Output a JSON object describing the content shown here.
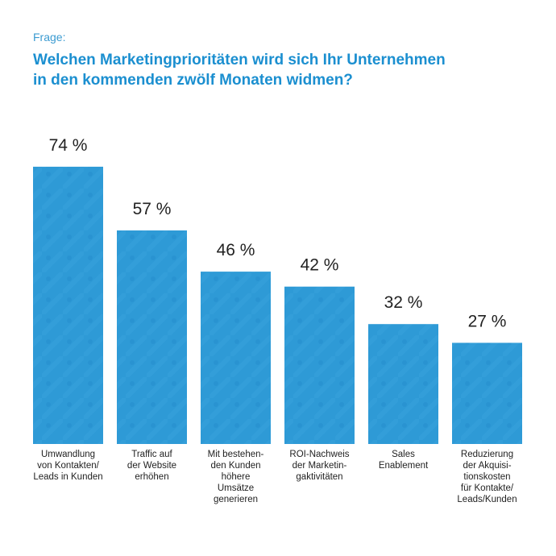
{
  "question_label": "Frage:",
  "title_line1": "Welchen Marketingprioritäten wird sich Ihr Unternehmen",
  "title_line2": "in den kommenden zwölf Monaten widmen?",
  "colors": {
    "bar": "#2e9ad6",
    "bar_dark": "#1f86c7",
    "title": "#1b8fd0",
    "label_text": "#222222"
  },
  "chart_data": {
    "type": "bar",
    "title": "Welchen Marketingprioritäten wird sich Ihr Unternehmen in den kommenden zwölf Monaten widmen?",
    "categories": [
      [
        "Umwandlung",
        "von Kontakten/",
        "Leads in Kunden"
      ],
      [
        "Traffic auf",
        "der Website",
        "erhöhen"
      ],
      [
        "Mit bestehen-",
        "den Kunden",
        "höhere",
        "Umsätze",
        "generieren"
      ],
      [
        "ROI-Nachweis",
        "der Marketin-",
        "gaktivitäten"
      ],
      [
        "Sales",
        "Enablement"
      ],
      [
        "Reduzierung",
        "der Akquisi-",
        "tionskosten",
        "für Kontakte/",
        "Leads/Kunden"
      ]
    ],
    "values": [
      74,
      57,
      46,
      42,
      32,
      27
    ],
    "value_labels": [
      "74 %",
      "57 %",
      "46 %",
      "42 %",
      "32 %",
      "27 %"
    ],
    "ylim": [
      0,
      100
    ],
    "xlabel": "",
    "ylabel": "",
    "grid": false
  }
}
